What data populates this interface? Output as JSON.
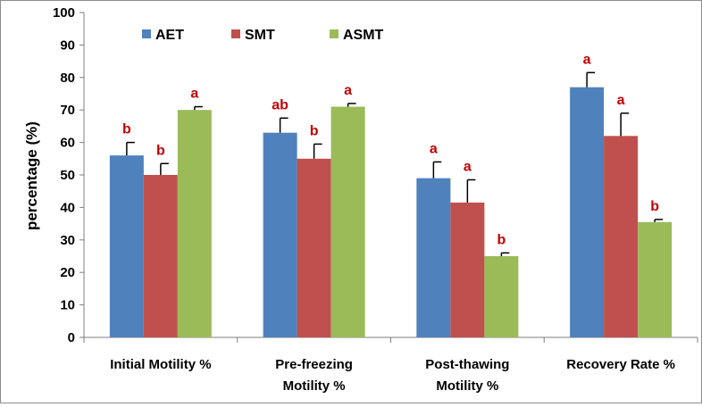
{
  "chart_data": {
    "type": "bar",
    "title": "",
    "xlabel": "",
    "ylabel": "percentage (%)",
    "ylim": [
      0,
      100
    ],
    "yticks": [
      0,
      10,
      20,
      30,
      40,
      50,
      60,
      70,
      80,
      90,
      100
    ],
    "grid": false,
    "legend": "top-left",
    "categories": [
      [
        "Initial Motility %"
      ],
      [
        "Pre-freezing",
        "Motility %"
      ],
      [
        "Post-thawing",
        "Motility %"
      ],
      [
        "Recovery Rate %"
      ]
    ],
    "series": [
      {
        "name": "AET",
        "color": "#4f81bd",
        "values": [
          56,
          63,
          49,
          77
        ],
        "errors": [
          4,
          4.5,
          5,
          4.5
        ],
        "labels": [
          "b",
          "ab",
          "a",
          "a"
        ]
      },
      {
        "name": "SMT",
        "color": "#c0504d",
        "values": [
          50,
          55,
          41.5,
          62
        ],
        "errors": [
          3.5,
          4.5,
          7,
          7
        ],
        "labels": [
          "b",
          "b",
          "a",
          "a"
        ]
      },
      {
        "name": "ASMT",
        "color": "#9bbb59",
        "values": [
          70,
          71,
          25,
          35.5
        ],
        "errors": [
          1,
          1,
          1,
          0.8
        ],
        "labels": [
          "a",
          "a",
          "b",
          "b"
        ]
      }
    ]
  }
}
